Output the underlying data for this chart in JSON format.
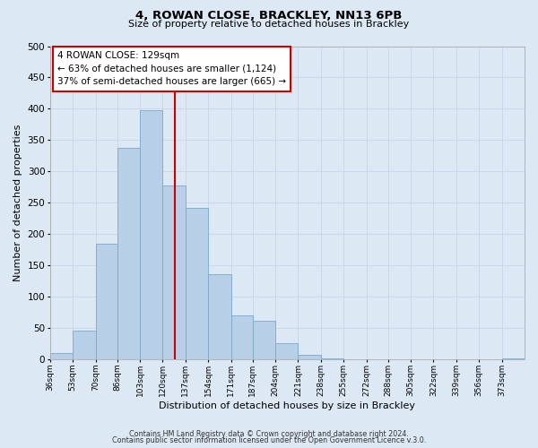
{
  "title": "4, ROWAN CLOSE, BRACKLEY, NN13 6PB",
  "subtitle": "Size of property relative to detached houses in Brackley",
  "xlabel": "Distribution of detached houses by size in Brackley",
  "ylabel": "Number of detached properties",
  "footer_lines": [
    "Contains HM Land Registry data © Crown copyright and database right 2024.",
    "Contains public sector information licensed under the Open Government Licence v.3.0."
  ],
  "bin_labels": [
    "36sqm",
    "53sqm",
    "70sqm",
    "86sqm",
    "103sqm",
    "120sqm",
    "137sqm",
    "154sqm",
    "171sqm",
    "187sqm",
    "204sqm",
    "221sqm",
    "238sqm",
    "255sqm",
    "272sqm",
    "288sqm",
    "305sqm",
    "322sqm",
    "339sqm",
    "356sqm",
    "373sqm"
  ],
  "bin_edges": [
    36,
    53,
    70,
    86,
    103,
    120,
    137,
    154,
    171,
    187,
    204,
    221,
    238,
    255,
    272,
    288,
    305,
    322,
    339,
    356,
    373
  ],
  "bar_heights": [
    10,
    46,
    185,
    338,
    398,
    278,
    242,
    137,
    70,
    62,
    26,
    8,
    2,
    1,
    0,
    0,
    0,
    0,
    0,
    0,
    2
  ],
  "bar_color": "#b8cfe8",
  "bar_edge_color": "#7aaac8",
  "vline_x": 129,
  "vline_color": "#cc0000",
  "ylim": [
    0,
    500
  ],
  "yticks": [
    0,
    50,
    100,
    150,
    200,
    250,
    300,
    350,
    400,
    450,
    500
  ],
  "annotation_title": "4 ROWAN CLOSE: 129sqm",
  "annotation_line1": "← 63% of detached houses are smaller (1,124)",
  "annotation_line2": "37% of semi-detached houses are larger (665) →",
  "annotation_box_color": "#ffffff",
  "annotation_box_edge": "#cc0000",
  "grid_color": "#c8d8ea",
  "background_color": "#dce8f4"
}
